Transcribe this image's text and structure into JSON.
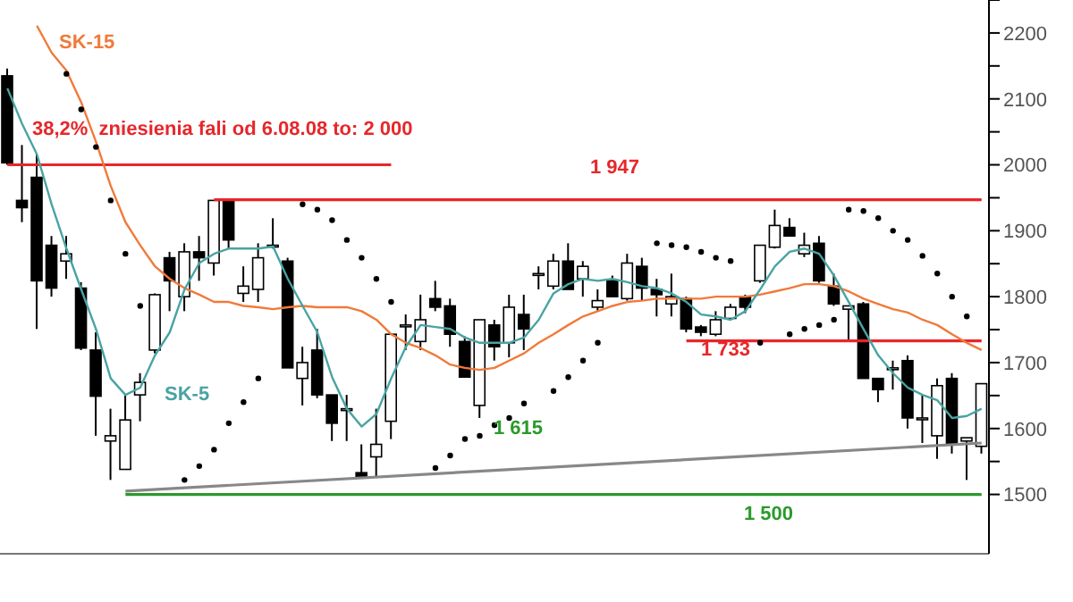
{
  "chart_data": {
    "type": "candlestick",
    "categories": [
      null,
      null,
      null,
      null,
      null,
      null,
      null,
      null,
      null,
      null,
      null,
      null,
      null,
      null,
      null,
      null,
      null,
      null,
      null,
      null,
      null,
      null,
      null,
      null,
      null,
      null,
      null,
      null,
      null,
      null,
      null,
      null,
      null,
      null,
      null,
      null,
      null,
      null,
      null,
      null,
      null,
      null,
      null,
      null,
      null,
      null,
      null,
      null,
      null,
      null,
      null,
      null,
      null,
      null,
      null,
      null,
      null,
      null,
      null,
      null,
      null,
      null,
      null,
      null,
      null,
      null,
      null
    ],
    "ohlc": [
      [
        2135,
        2146,
        2000,
        2003
      ],
      [
        1946,
        2030,
        1913,
        1935
      ],
      [
        1981,
        2016,
        1751,
        1824
      ],
      [
        1878,
        1892,
        1800,
        1813
      ],
      [
        1854,
        1892,
        1827,
        1865
      ],
      [
        1813,
        1822,
        1719,
        1722
      ],
      [
        1719,
        1746,
        1589,
        1649
      ],
      [
        1581,
        1630,
        1522,
        1589
      ],
      [
        1538,
        1651,
        1538,
        1613
      ],
      [
        1651,
        1684,
        1611,
        1670
      ],
      [
        1719,
        1805,
        1714,
        1803
      ],
      [
        1859,
        1868,
        1778,
        1824
      ],
      [
        1800,
        1881,
        1778,
        1868
      ],
      [
        1868,
        1892,
        1824,
        1859
      ],
      [
        1851,
        1946,
        1832,
        1946
      ],
      [
        1946,
        1946,
        1873,
        1886
      ],
      [
        1805,
        1846,
        1792,
        1816
      ],
      [
        1811,
        1881,
        1792,
        1859
      ],
      [
        1878,
        1919,
        1873,
        1878
      ],
      [
        1854,
        1859,
        1692,
        1692
      ],
      [
        1676,
        1724,
        1635,
        1700
      ],
      [
        1719,
        1751,
        1646,
        1651
      ],
      [
        1651,
        1651,
        1581,
        1608
      ],
      [
        1630,
        1651,
        1581,
        1630
      ],
      [
        1533,
        1576,
        1524,
        1527
      ],
      [
        1557,
        1630,
        1527,
        1576
      ],
      [
        1611,
        1743,
        1584,
        1743
      ],
      [
        1757,
        1773,
        1719,
        1757
      ],
      [
        1732,
        1803,
        1719,
        1765
      ],
      [
        1797,
        1824,
        1778,
        1784
      ],
      [
        1786,
        1797,
        1724,
        1743
      ],
      [
        1732,
        1740,
        1678,
        1678
      ],
      [
        1635,
        1765,
        1616,
        1765
      ],
      [
        1757,
        1765,
        1703,
        1724
      ],
      [
        1730,
        1803,
        1708,
        1784
      ],
      [
        1773,
        1803,
        1719,
        1751
      ],
      [
        1835,
        1846,
        1811,
        1835
      ],
      [
        1816,
        1865,
        1811,
        1854
      ],
      [
        1854,
        1881,
        1811,
        1811
      ],
      [
        1827,
        1854,
        1800,
        1846
      ],
      [
        1784,
        1811,
        1778,
        1794
      ],
      [
        1824,
        1832,
        1800,
        1800
      ],
      [
        1797,
        1865,
        1794,
        1851
      ],
      [
        1846,
        1859,
        1794,
        1813
      ],
      [
        1811,
        1827,
        1770,
        1803
      ],
      [
        1789,
        1835,
        1770,
        1800
      ],
      [
        1797,
        1800,
        1746,
        1751
      ],
      [
        1754,
        1757,
        1740,
        1746
      ],
      [
        1743,
        1778,
        1740,
        1765
      ],
      [
        1767,
        1789,
        1765,
        1784
      ],
      [
        1800,
        1803,
        1775,
        1784
      ],
      [
        1824,
        1878,
        1821,
        1878
      ],
      [
        1875,
        1932,
        1873,
        1908
      ],
      [
        1905,
        1919,
        1892,
        1892
      ],
      [
        1865,
        1897,
        1860,
        1878
      ],
      [
        1881,
        1892,
        1821,
        1824
      ],
      [
        1816,
        1835,
        1786,
        1789
      ],
      [
        1781,
        1786,
        1735,
        1786
      ],
      [
        1789,
        1792,
        1676,
        1676
      ],
      [
        1676,
        1676,
        1640,
        1659
      ],
      [
        1692,
        1703,
        1659,
        1692
      ],
      [
        1703,
        1711,
        1600,
        1616
      ],
      [
        1616,
        1651,
        1578,
        1616
      ],
      [
        1589,
        1676,
        1554,
        1665
      ],
      [
        1676,
        1684,
        1562,
        1576
      ],
      [
        1581,
        1586,
        1522,
        1586
      ],
      [
        1573,
        1668,
        1562,
        1668
      ]
    ],
    "series": [
      {
        "name": "SK-15",
        "type": "line",
        "color": "#f07a3a",
        "values": [
          null,
          null,
          2211,
          2170,
          2143,
          2095,
          2035,
          1968,
          1913,
          1878,
          1846,
          1827,
          1813,
          1803,
          1792,
          1792,
          1786,
          1784,
          1781,
          1784,
          1786,
          1784,
          1784,
          1784,
          1778,
          1765,
          1743,
          1730,
          1722,
          1711,
          1697,
          1692,
          1689,
          1692,
          1703,
          1714,
          1730,
          1743,
          1757,
          1770,
          1778,
          1786,
          1792,
          1794,
          1797,
          1797,
          1797,
          1797,
          1800,
          1800,
          1800,
          1803,
          1808,
          1813,
          1819,
          1819,
          1816,
          1808,
          1797,
          1789,
          1781,
          1776,
          1765,
          1757,
          1743,
          1730,
          1719
        ]
      },
      {
        "name": "SK-5",
        "type": "line",
        "color": "#4aa3a3",
        "values": [
          2116,
          2062,
          2016,
          1940,
          1873,
          1811,
          1751,
          1676,
          1651,
          1662,
          1711,
          1746,
          1811,
          1851,
          1865,
          1873,
          1873,
          1873,
          1876,
          1827,
          1786,
          1746,
          1678,
          1630,
          1603,
          1622,
          1676,
          1724,
          1757,
          1754,
          1751,
          1738,
          1730,
          1730,
          1730,
          1738,
          1765,
          1805,
          1819,
          1827,
          1824,
          1827,
          1822,
          1816,
          1813,
          1805,
          1792,
          1773,
          1770,
          1765,
          1778,
          1811,
          1846,
          1868,
          1873,
          1865,
          1832,
          1792,
          1751,
          1711,
          1684,
          1662,
          1651,
          1643,
          1616,
          1619,
          1630
        ]
      },
      {
        "type": "scatter",
        "color": "#000000",
        "values": [
          null,
          null,
          null,
          null,
          2138,
          2084,
          2027,
          1946,
          1865,
          1786,
          null,
          null,
          1522,
          1543,
          1568,
          1608,
          1640,
          1676,
          null,
          null,
          1940,
          1932,
          1916,
          1886,
          1859,
          1827,
          1792,
          null,
          null,
          1540,
          1559,
          1584,
          1589,
          1605,
          1616,
          1638,
          null,
          1657,
          1678,
          1703,
          1730,
          null,
          null,
          null,
          1881,
          1878,
          1875,
          1868,
          1859,
          1854,
          null,
          1730,
          null,
          1743,
          1751,
          1757,
          1765,
          1932,
          1930,
          1919,
          1900,
          1886,
          1862,
          1835,
          1800,
          1770,
          null
        ]
      },
      {
        "type": "line",
        "color": "#e8262a",
        "values": [
          2000,
          2000,
          2000,
          2000,
          2000,
          2000,
          2000,
          2000,
          2000,
          2000,
          2000,
          2000,
          2000,
          2000,
          2000,
          2000,
          2000,
          2000,
          2000,
          2000,
          2000,
          2000,
          2000,
          2000,
          2000,
          2000,
          2000,
          null,
          null,
          null,
          null,
          null,
          null,
          null,
          null,
          null,
          null,
          null,
          null,
          null,
          null,
          null,
          null,
          null,
          null,
          null,
          null,
          null,
          null,
          null,
          null,
          null,
          null,
          null,
          null,
          null,
          null,
          null,
          null,
          null,
          null,
          null,
          null,
          null,
          null,
          null,
          null
        ]
      },
      {
        "type": "line",
        "color": "#e8262a",
        "values": [
          null,
          null,
          null,
          null,
          null,
          null,
          null,
          null,
          null,
          null,
          null,
          null,
          null,
          null,
          1947,
          1947,
          1947,
          1947,
          1947,
          1947,
          1947,
          1947,
          1947,
          1947,
          1947,
          1947,
          1947,
          1947,
          1947,
          1947,
          1947,
          1947,
          1947,
          1947,
          1947,
          1947,
          1947,
          1947,
          1947,
          1947,
          1947,
          1947,
          1947,
          1947,
          1947,
          1947,
          1947,
          1947,
          1947,
          1947,
          1947,
          1947,
          1947,
          1947,
          1947,
          1947,
          1947,
          1947,
          1947,
          1947,
          1947,
          1947,
          1947,
          1947,
          1947,
          1947,
          1947
        ]
      },
      {
        "type": "line",
        "color": "#e8262a",
        "values": [
          null,
          null,
          null,
          null,
          null,
          null,
          null,
          null,
          null,
          null,
          null,
          null,
          null,
          null,
          null,
          null,
          null,
          null,
          null,
          null,
          null,
          null,
          null,
          null,
          null,
          null,
          null,
          null,
          null,
          null,
          null,
          null,
          null,
          null,
          null,
          null,
          null,
          null,
          null,
          null,
          null,
          null,
          null,
          null,
          null,
          null,
          1733,
          1733,
          1733,
          1733,
          1733,
          1733,
          1733,
          1733,
          1733,
          1733,
          1733,
          1733,
          1733,
          1733,
          1733,
          1733,
          1733,
          1733,
          1733,
          1733,
          1733
        ]
      },
      {
        "type": "line",
        "color": "#2a9a2a",
        "values": [
          null,
          null,
          null,
          null,
          null,
          null,
          null,
          null,
          1500,
          1500,
          1500,
          1500,
          1500,
          1500,
          1500,
          1500,
          1500,
          1500,
          1500,
          1500,
          1500,
          1500,
          1500,
          1500,
          1500,
          1500,
          1500,
          1500,
          1500,
          1500,
          1500,
          1500,
          1500,
          1500,
          1500,
          1500,
          1500,
          1500,
          1500,
          1500,
          1500,
          1500,
          1500,
          1500,
          1500,
          1500,
          1500,
          1500,
          1500,
          1500,
          1500,
          1500,
          1500,
          1500,
          1500,
          1500,
          1500,
          1500,
          1500,
          1500,
          1500,
          1500,
          1500,
          1500,
          1500,
          1500,
          1500
        ]
      },
      {
        "type": "line",
        "color": "#888888",
        "values": [
          null,
          null,
          null,
          null,
          null,
          null,
          null,
          null,
          1505,
          null,
          null,
          null,
          null,
          null,
          null,
          null,
          null,
          null,
          null,
          null,
          null,
          null,
          null,
          null,
          null,
          null,
          null,
          null,
          null,
          null,
          null,
          null,
          null,
          null,
          null,
          null,
          null,
          null,
          null,
          null,
          null,
          null,
          null,
          null,
          null,
          null,
          null,
          null,
          null,
          null,
          null,
          null,
          null,
          null,
          null,
          null,
          null,
          null,
          null,
          null,
          null,
          null,
          null,
          null,
          null,
          null,
          1578
        ]
      }
    ],
    "annotations": [
      {
        "text": "38,2%  zniesienia fali od 6.08.08 to: 2 000",
        "y": 2000
      },
      {
        "text": "1 947",
        "y": 1947
      },
      {
        "text": "1 733",
        "y": 1733
      },
      "1 615",
      {
        "text": "1 500",
        "y": 1500
      }
    ],
    "ylim": [
      1410,
      2250
    ],
    "yticks": [
      1500,
      {
        "value": 1550,
        "label": null
      },
      1600,
      {
        "value": 1650,
        "label": null
      },
      1700,
      {
        "value": 1750,
        "label": null
      },
      1800,
      {
        "value": 1850,
        "label": null
      },
      1900,
      {
        "value": 1950,
        "label": null
      },
      2000,
      {
        "value": 2050,
        "label": null
      },
      2100,
      {
        "value": 2150,
        "label": null
      },
      2200,
      {
        "value": 2250,
        "label": null
      }
    ],
    "tick_labels": "y",
    "grid": false,
    "legend": false
  }
}
